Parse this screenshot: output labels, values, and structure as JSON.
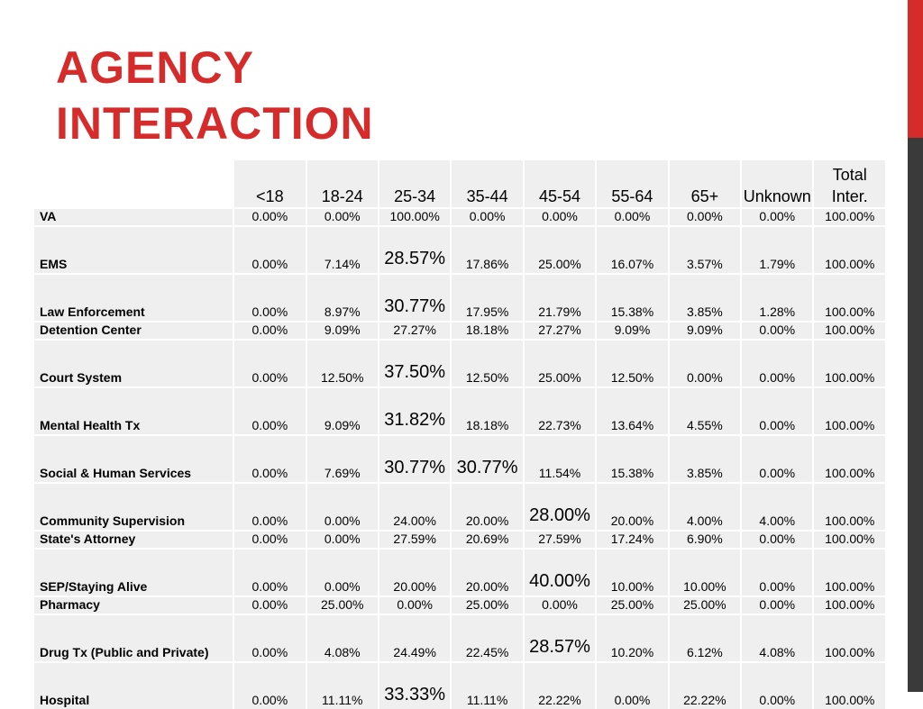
{
  "title": {
    "line1": "AGENCY",
    "line2": "INTERACTION"
  },
  "colors": {
    "accent": "#d62b2b",
    "side_bar_dark": "#3a3a3a",
    "cell_bg": "#efefef"
  },
  "table": {
    "headers": [
      "<18",
      "18-24",
      "25-34",
      "35-44",
      "45-54",
      "55-64",
      "65+",
      "Unknown",
      "Total Inter."
    ],
    "rows": [
      {
        "label": "VA",
        "values": [
          "0.00%",
          "0.00%",
          "100.00%",
          "0.00%",
          "0.00%",
          "0.00%",
          "0.00%",
          "0.00%",
          "100.00%"
        ]
      },
      {
        "label": "EMS",
        "values": [
          "0.00%",
          "7.14%",
          "28.57%",
          "17.86%",
          "25.00%",
          "16.07%",
          "3.57%",
          "1.79%",
          "100.00%"
        ]
      },
      {
        "label": "Law Enforcement",
        "values": [
          "0.00%",
          "8.97%",
          "30.77%",
          "17.95%",
          "21.79%",
          "15.38%",
          "3.85%",
          "1.28%",
          "100.00%"
        ]
      },
      {
        "label": "Detention Center",
        "values": [
          "0.00%",
          "9.09%",
          "27.27%",
          "18.18%",
          "27.27%",
          "9.09%",
          "9.09%",
          "0.00%",
          "100.00%"
        ]
      },
      {
        "label": "Court System",
        "values": [
          "0.00%",
          "12.50%",
          "37.50%",
          "12.50%",
          "25.00%",
          "12.50%",
          "0.00%",
          "0.00%",
          "100.00%"
        ]
      },
      {
        "label": "Mental Health Tx",
        "values": [
          "0.00%",
          "9.09%",
          "31.82%",
          "18.18%",
          "22.73%",
          "13.64%",
          "4.55%",
          "0.00%",
          "100.00%"
        ]
      },
      {
        "label": "Social & Human Services",
        "values": [
          "0.00%",
          "7.69%",
          "30.77%",
          "30.77%",
          "11.54%",
          "15.38%",
          "3.85%",
          "0.00%",
          "100.00%"
        ]
      },
      {
        "label": "Community Supervision",
        "values": [
          "0.00%",
          "0.00%",
          "24.00%",
          "20.00%",
          "28.00%",
          "20.00%",
          "4.00%",
          "4.00%",
          "100.00%"
        ]
      },
      {
        "label": "State's Attorney",
        "values": [
          "0.00%",
          "0.00%",
          "27.59%",
          "20.69%",
          "27.59%",
          "17.24%",
          "6.90%",
          "0.00%",
          "100.00%"
        ]
      },
      {
        "label": "SEP/Staying Alive",
        "values": [
          "0.00%",
          "0.00%",
          "20.00%",
          "20.00%",
          "40.00%",
          "10.00%",
          "10.00%",
          "0.00%",
          "100.00%"
        ]
      },
      {
        "label": "Pharmacy",
        "values": [
          "0.00%",
          "25.00%",
          "0.00%",
          "25.00%",
          "0.00%",
          "25.00%",
          "25.00%",
          "0.00%",
          "100.00%"
        ]
      },
      {
        "label": "Drug Tx (Public and Private)",
        "values": [
          "0.00%",
          "4.08%",
          "24.49%",
          "22.45%",
          "28.57%",
          "10.20%",
          "6.12%",
          "4.08%",
          "100.00%"
        ]
      },
      {
        "label": "Hospital",
        "values": [
          "0.00%",
          "11.11%",
          "33.33%",
          "11.11%",
          "22.22%",
          "0.00%",
          "22.22%",
          "0.00%",
          "100.00%"
        ]
      }
    ]
  }
}
